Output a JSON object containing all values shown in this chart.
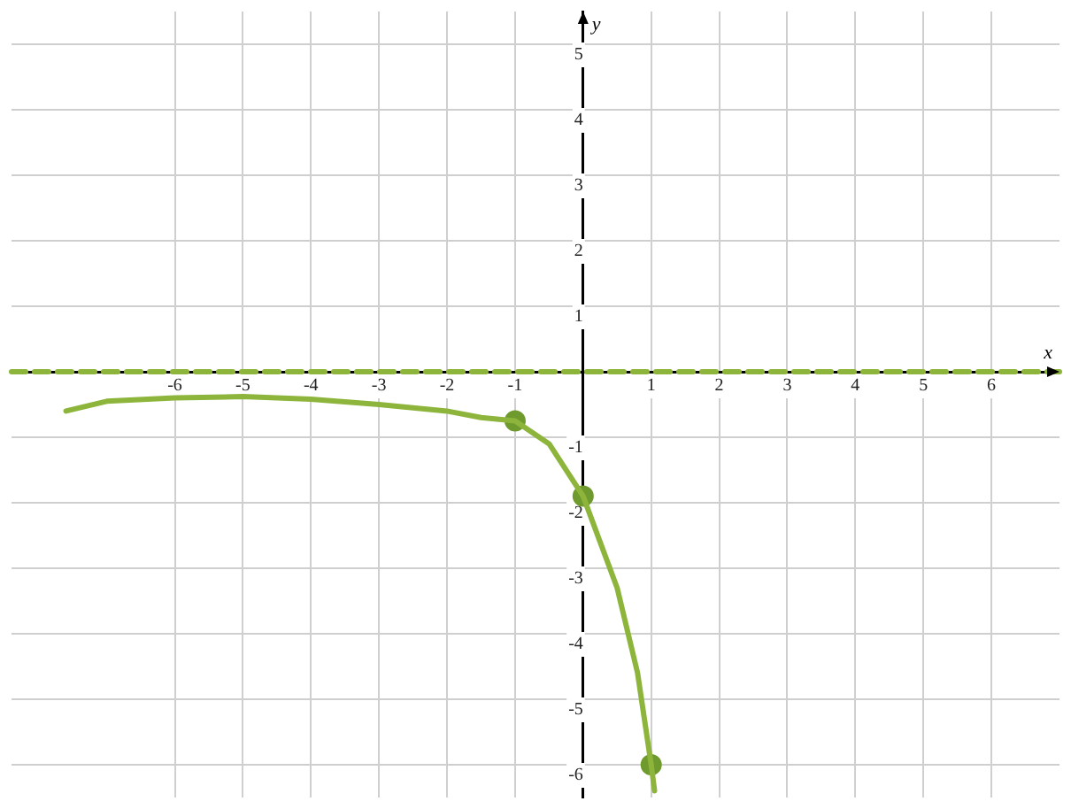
{
  "chart_data": {
    "type": "line",
    "xlabel": "x",
    "ylabel": "y",
    "xlim": [
      -8.4,
      7
    ],
    "ylim": [
      -6.5,
      5.5
    ],
    "xticks": [
      -6,
      -5,
      -4,
      -3,
      -2,
      -1,
      1,
      2,
      3,
      4,
      5,
      6
    ],
    "yticks": [
      -6,
      -5,
      -4,
      -3,
      -2,
      -1,
      1,
      2,
      3,
      4,
      5
    ],
    "grid": true,
    "legend": false,
    "series": [
      {
        "type": "line",
        "color": "#8db53c",
        "marker": "none",
        "x": [
          -7.6,
          -7,
          -6,
          -5,
          -4,
          -3,
          -2,
          -1.5,
          -1,
          -0.5,
          0,
          0.5,
          0.8,
          1,
          1.05
        ],
        "values": [
          -0.6,
          -0.45,
          -0.4,
          -0.38,
          -0.42,
          -0.5,
          -0.6,
          -0.7,
          -0.75,
          -1.1,
          -1.9,
          -3.3,
          -4.6,
          -6,
          -6.4
        ]
      },
      {
        "type": "scatter",
        "color": "#6f9a2e",
        "marker": "circle",
        "x": [
          -1,
          0,
          1
        ],
        "values": [
          -0.75,
          -1.9,
          -6
        ]
      }
    ],
    "ref_lines": [
      {
        "axis": "y",
        "value": 0,
        "color": "#8db53c",
        "line_style": "dashed"
      }
    ]
  }
}
